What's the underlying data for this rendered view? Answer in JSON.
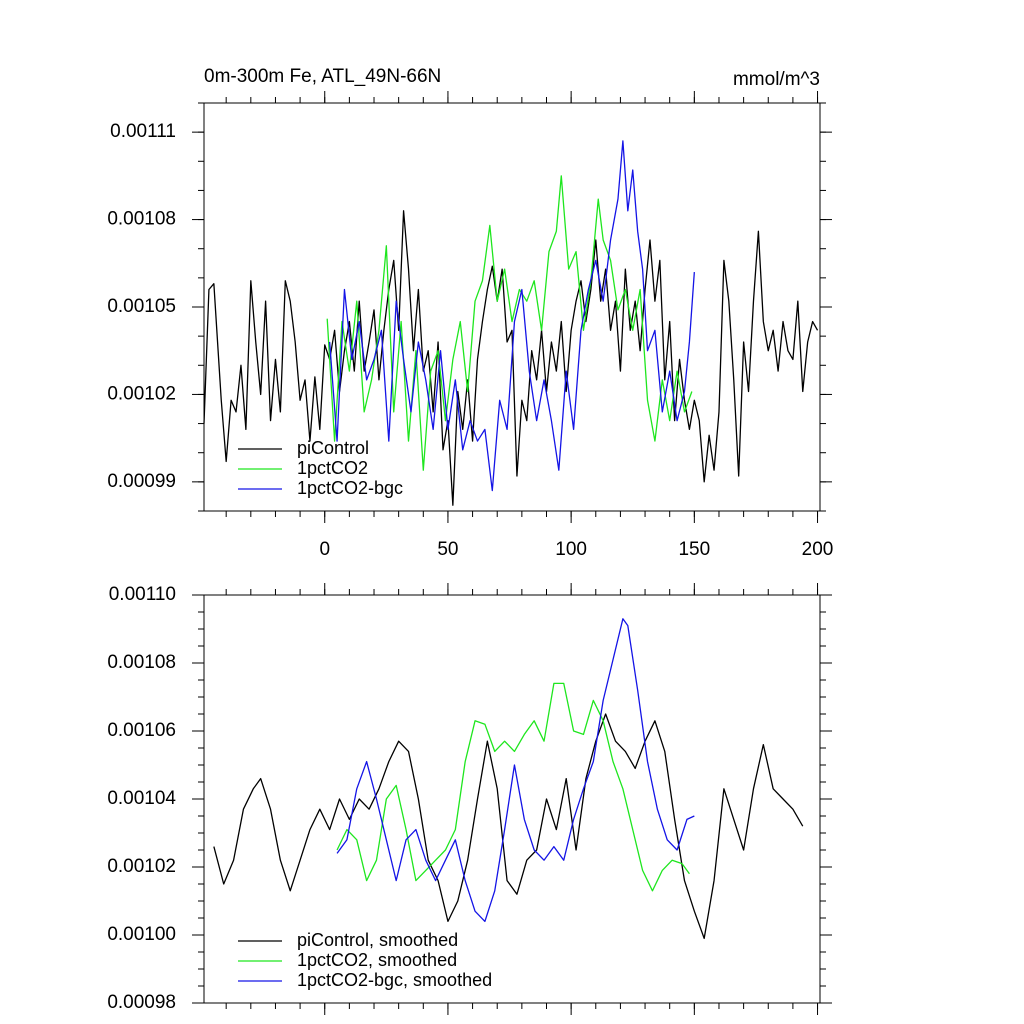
{
  "chart_data": [
    {
      "type": "line",
      "title": "0m-300m Fe, ATL_49N-66N",
      "units_label": "mmol/m^3",
      "xlim": [
        -49,
        201
      ],
      "ylim": [
        0.00098,
        0.00112
      ],
      "xticks": [
        0,
        50,
        100,
        150,
        200
      ],
      "yticks": [
        0.00099,
        0.00102,
        0.00105,
        0.00108,
        0.00111
      ],
      "legend": "lower left",
      "series": [
        {
          "name": "piControl",
          "color": "#000000",
          "x": [
            -49,
            -47,
            -45,
            -42,
            -40,
            -38,
            -36,
            -34,
            -32,
            -30,
            -28,
            -26,
            -24,
            -22,
            -20,
            -18,
            -16,
            -14,
            -12,
            -10,
            -8,
            -6,
            -4,
            -2,
            0,
            2,
            4,
            6,
            8,
            10,
            12,
            14,
            16,
            18,
            20,
            22,
            24,
            26,
            28,
            30,
            32,
            34,
            36,
            38,
            40,
            42,
            44,
            46,
            48,
            50,
            52,
            54,
            56,
            58,
            60,
            62,
            64,
            66,
            68,
            70,
            72,
            74,
            76,
            78,
            80,
            82,
            84,
            86,
            88,
            90,
            92,
            94,
            96,
            98,
            100,
            102,
            104,
            106,
            108,
            110,
            112,
            114,
            116,
            118,
            120,
            122,
            124,
            126,
            128,
            130,
            132,
            134,
            136,
            138,
            140,
            142,
            144,
            146,
            148,
            150,
            152,
            154,
            156,
            158,
            160,
            162,
            164,
            166,
            168,
            170,
            172,
            174,
            176,
            178,
            180,
            182,
            184,
            186,
            188,
            190,
            192,
            194,
            196,
            198,
            200
          ],
          "values": [
            0.00101,
            0.001056,
            0.001058,
            0.001018,
            0.000997,
            0.001018,
            0.001014,
            0.00103,
            0.001008,
            0.001059,
            0.001038,
            0.00102,
            0.001052,
            0.001011,
            0.001032,
            0.001014,
            0.001059,
            0.001052,
            0.001038,
            0.001018,
            0.001025,
            0.001004,
            0.001026,
            0.001008,
            0.001037,
            0.001032,
            0.001042,
            0.001021,
            0.001035,
            0.001045,
            0.001028,
            0.001052,
            0.001028,
            0.001038,
            0.001049,
            0.001025,
            0.001042,
            0.001056,
            0.001066,
            0.001042,
            0.001083,
            0.001063,
            0.001035,
            0.001056,
            0.001028,
            0.001035,
            0.001014,
            0.001038,
            0.001001,
            0.001011,
            0.000982,
            0.001021,
            0.001008,
            0.001025,
            0.001004,
            0.001032,
            0.001045,
            0.001056,
            0.001064,
            0.001052,
            0.001063,
            0.001038,
            0.001042,
            0.000992,
            0.001018,
            0.001011,
            0.001035,
            0.001025,
            0.001042,
            0.001021,
            0.001038,
            0.001028,
            0.001045,
            0.001021,
            0.001042,
            0.001052,
            0.001059,
            0.001045,
            0.001056,
            0.001073,
            0.001052,
            0.001063,
            0.001042,
            0.001052,
            0.001028,
            0.001063,
            0.001042,
            0.001052,
            0.001035,
            0.001056,
            0.001073,
            0.001052,
            0.001066,
            0.001025,
            0.001045,
            0.001011,
            0.001032,
            0.001018,
            0.001008,
            0.001018,
            0.001011,
            0.00099,
            0.001006,
            0.000994,
            0.001014,
            0.001066,
            0.001052,
            0.001025,
            0.000992,
            0.001038,
            0.001021,
            0.001052,
            0.001076,
            0.001045,
            0.001035,
            0.001042,
            0.001028,
            0.001045,
            0.001035,
            0.001032,
            0.001052,
            0.001021,
            0.001038,
            0.001045,
            0.001042
          ]
        },
        {
          "name": "1pctCO2",
          "color": "#1ee61e",
          "x": [
            1,
            4,
            7,
            10,
            13,
            16,
            19,
            22,
            25,
            28,
            31,
            34,
            37,
            40,
            43,
            46,
            49,
            52,
            55,
            58,
            61,
            64,
            67,
            70,
            73,
            76,
            79,
            82,
            85,
            88,
            91,
            94,
            96,
            99,
            102,
            105,
            108,
            111,
            113,
            116,
            119,
            122,
            125,
            128,
            131,
            134,
            137,
            140,
            143,
            146,
            149
          ],
          "values": [
            0.001046,
            0.001004,
            0.001045,
            0.001028,
            0.001052,
            0.001014,
            0.001025,
            0.001042,
            0.001071,
            0.001014,
            0.001045,
            0.001004,
            0.001035,
            0.000994,
            0.001028,
            0.001035,
            0.001011,
            0.001032,
            0.001045,
            0.001021,
            0.001052,
            0.001059,
            0.001078,
            0.001052,
            0.001063,
            0.001045,
            0.001056,
            0.001052,
            0.001059,
            0.001042,
            0.001069,
            0.001076,
            0.001095,
            0.001063,
            0.001069,
            0.001042,
            0.001059,
            0.001087,
            0.001073,
            0.001066,
            0.001049,
            0.001056,
            0.001042,
            0.001056,
            0.001018,
            0.001004,
            0.001025,
            0.001011,
            0.001028,
            0.001014,
            0.001021
          ]
        },
        {
          "name": "1pctCO2-bgc",
          "color": "#1414e6",
          "x": [
            2,
            5,
            8,
            11,
            14,
            17,
            20,
            23,
            26,
            29,
            32,
            35,
            38,
            41,
            44,
            47,
            50,
            53,
            56,
            59,
            62,
            65,
            68,
            71,
            74,
            77,
            80,
            83,
            86,
            89,
            92,
            95,
            98,
            101,
            104,
            107,
            110,
            113,
            116,
            119,
            121,
            123,
            125,
            127,
            129,
            131,
            134,
            137,
            140,
            143,
            146,
            148,
            150
          ],
          "values": [
            0.001038,
            0.001004,
            0.001056,
            0.001032,
            0.001045,
            0.001025,
            0.001032,
            0.001042,
            0.001004,
            0.001052,
            0.001032,
            0.001014,
            0.001038,
            0.001025,
            0.001008,
            0.001035,
            0.001008,
            0.001025,
            0.001001,
            0.001011,
            0.001004,
            0.001008,
            0.000987,
            0.001018,
            0.001008,
            0.001045,
            0.001056,
            0.001028,
            0.001011,
            0.001025,
            0.001011,
            0.000994,
            0.001028,
            0.001008,
            0.001042,
            0.001056,
            0.001066,
            0.001052,
            0.001073,
            0.001087,
            0.001107,
            0.001083,
            0.001097,
            0.001076,
            0.001063,
            0.001035,
            0.001042,
            0.001014,
            0.001028,
            0.001011,
            0.001021,
            0.001038,
            0.001062
          ]
        }
      ]
    },
    {
      "type": "line",
      "xlim": [
        -49,
        201
      ],
      "ylim": [
        0.00098,
        0.0011
      ],
      "xticks": [
        0,
        50,
        100,
        150,
        200
      ],
      "yticks": [
        0.00098,
        {
          "value": 0.001,
          "label": "0.00100"
        },
        0.00102,
        0.00104,
        0.00106,
        0.00108,
        {
          "value": 0.0011,
          "label": "0.00110"
        }
      ],
      "legend": "lower left",
      "series": [
        {
          "name": "piControl, smoothed",
          "color": "#000000",
          "x": [
            -45,
            -41,
            -37,
            -33,
            -29,
            -26,
            -22,
            -18,
            -14,
            -10,
            -6,
            -2,
            2,
            6,
            10,
            14,
            18,
            22,
            26,
            30,
            34,
            38,
            42,
            46,
            50,
            54,
            58,
            62,
            66,
            70,
            74,
            78,
            82,
            86,
            90,
            94,
            98,
            102,
            106,
            110,
            114,
            118,
            122,
            126,
            130,
            134,
            138,
            142,
            146,
            150,
            154,
            158,
            162,
            166,
            170,
            174,
            178,
            182,
            186,
            190,
            194
          ],
          "values": [
            0.001026,
            0.001015,
            0.001022,
            0.001037,
            0.001043,
            0.001046,
            0.001037,
            0.001022,
            0.001013,
            0.001022,
            0.001031,
            0.001037,
            0.001031,
            0.00104,
            0.001034,
            0.00104,
            0.001037,
            0.001043,
            0.001051,
            0.001057,
            0.001054,
            0.00104,
            0.001022,
            0.001016,
            0.001004,
            0.00101,
            0.001022,
            0.00104,
            0.001057,
            0.001043,
            0.001016,
            0.001012,
            0.001022,
            0.001025,
            0.00104,
            0.001031,
            0.001046,
            0.001025,
            0.001046,
            0.001057,
            0.001065,
            0.001057,
            0.001054,
            0.001049,
            0.001057,
            0.001063,
            0.001054,
            0.001034,
            0.001016,
            0.001007,
            0.000999,
            0.001016,
            0.001043,
            0.001034,
            0.001025,
            0.001043,
            0.001056,
            0.001043,
            0.00104,
            0.001037,
            0.001032
          ]
        },
        {
          "name": "1pctCO2, smoothed",
          "color": "#1ee61e",
          "x": [
            5,
            9,
            13,
            17,
            21,
            25,
            29,
            33,
            37,
            41,
            45,
            49,
            53,
            57,
            61,
            65,
            69,
            73,
            77,
            81,
            85,
            89,
            93,
            97,
            101,
            105,
            109,
            113,
            117,
            121,
            125,
            129,
            133,
            137,
            141,
            145,
            148
          ],
          "values": [
            0.001025,
            0.001031,
            0.001028,
            0.001016,
            0.001022,
            0.00104,
            0.001044,
            0.001031,
            0.001016,
            0.001019,
            0.001022,
            0.001025,
            0.001031,
            0.001051,
            0.001063,
            0.001062,
            0.001054,
            0.001057,
            0.001054,
            0.001059,
            0.001063,
            0.001057,
            0.001074,
            0.001074,
            0.00106,
            0.001059,
            0.001069,
            0.001063,
            0.001051,
            0.001043,
            0.001031,
            0.001019,
            0.001013,
            0.001019,
            0.001022,
            0.001021,
            0.001018
          ]
        },
        {
          "name": "1pctCO2-bgc, smoothed",
          "color": "#1414e6",
          "x": [
            5,
            9,
            13,
            17,
            21,
            25,
            29,
            33,
            37,
            41,
            45,
            49,
            53,
            57,
            61,
            65,
            69,
            73,
            77,
            81,
            85,
            89,
            93,
            97,
            101,
            105,
            109,
            113,
            117,
            121,
            123,
            127,
            131,
            135,
            139,
            143,
            147,
            150
          ],
          "values": [
            0.001024,
            0.001028,
            0.001043,
            0.001051,
            0.00104,
            0.001028,
            0.001016,
            0.001028,
            0.001031,
            0.001022,
            0.001016,
            0.001022,
            0.001028,
            0.001016,
            0.001007,
            0.001004,
            0.001013,
            0.001031,
            0.00105,
            0.001034,
            0.001025,
            0.001022,
            0.001026,
            0.001022,
            0.001034,
            0.001043,
            0.001051,
            0.001069,
            0.001081,
            0.001093,
            0.001091,
            0.001072,
            0.001051,
            0.001037,
            0.001028,
            0.001025,
            0.001034,
            0.001035
          ]
        }
      ]
    }
  ]
}
